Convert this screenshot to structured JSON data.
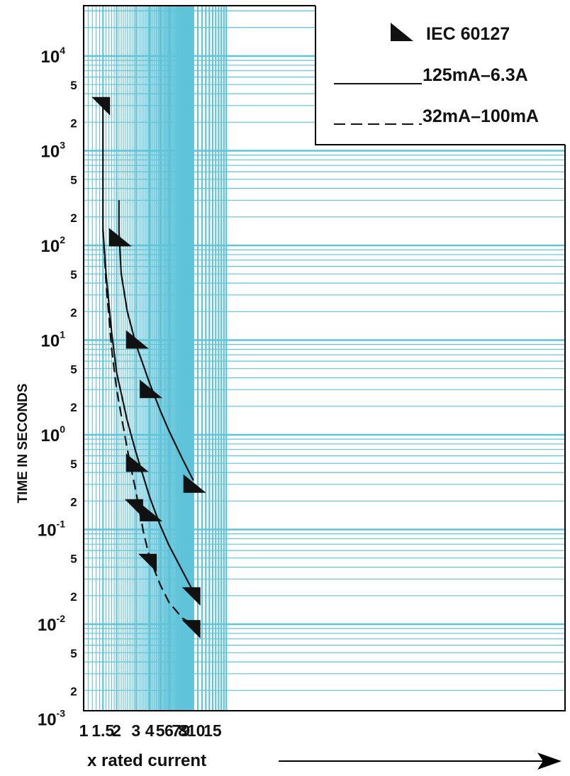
{
  "chart_data": {
    "type": "line",
    "title": "",
    "xlabel": "x rated current",
    "ylabel": "TIME IN SECONDS",
    "xscale": "log",
    "yscale": "log",
    "xlim": [
      1,
      20
    ],
    "ylim": [
      0.001,
      50000
    ],
    "grid": true,
    "x_ticks": [
      {
        "value": 1,
        "label": "1"
      },
      {
        "value": 1.5,
        "label": "1.5"
      },
      {
        "value": 2,
        "label": "2"
      },
      {
        "value": 3,
        "label": "3"
      },
      {
        "value": 4,
        "label": "4"
      },
      {
        "value": 5,
        "label": "5"
      },
      {
        "value": 6,
        "label": "6"
      },
      {
        "value": 7,
        "label": "7"
      },
      {
        "value": 8,
        "label": "8"
      },
      {
        "value": 9,
        "label": "9"
      },
      {
        "value": 10,
        "label": "10"
      },
      {
        "value": 15,
        "label": "15"
      }
    ],
    "y_ticks": [
      {
        "value": 0.001,
        "base": "10",
        "exp": "-3"
      },
      {
        "value": 0.002,
        "label": "2"
      },
      {
        "value": 0.005,
        "label": "5"
      },
      {
        "value": 0.01,
        "base": "10",
        "exp": "-2"
      },
      {
        "value": 0.02,
        "label": "2"
      },
      {
        "value": 0.05,
        "label": "5"
      },
      {
        "value": 0.1,
        "base": "10",
        "exp": "-1"
      },
      {
        "value": 0.2,
        "label": "2"
      },
      {
        "value": 0.5,
        "label": "5"
      },
      {
        "value": 1,
        "base": "10",
        "exp": "0"
      },
      {
        "value": 2,
        "label": "2"
      },
      {
        "value": 5,
        "label": "5"
      },
      {
        "value": 10,
        "base": "10",
        "exp": "1"
      },
      {
        "value": 20,
        "label": "2"
      },
      {
        "value": 50,
        "label": "5"
      },
      {
        "value": 100,
        "base": "10",
        "exp": "2"
      },
      {
        "value": 200,
        "label": "2"
      },
      {
        "value": 500,
        "label": "5"
      },
      {
        "value": 1000,
        "base": "10",
        "exp": "3"
      },
      {
        "value": 2000,
        "label": "2"
      },
      {
        "value": 5000,
        "label": "5"
      },
      {
        "value": 10000,
        "base": "10",
        "exp": "4"
      }
    ],
    "legend": {
      "position": "top-right",
      "entries": [
        {
          "label": "IEC 60127",
          "style": "marker"
        },
        {
          "label": "125mA–6.3A",
          "style": "solid"
        },
        {
          "label": "32mA–100mA",
          "style": "dashed"
        }
      ]
    },
    "series": [
      {
        "style": "solid",
        "points": [
          [
            1.5,
            3000
          ],
          [
            1.5,
            150
          ],
          [
            1.6,
            50
          ],
          [
            1.8,
            12
          ],
          [
            2,
            4.5
          ],
          [
            2.5,
            1.4
          ],
          [
            3,
            0.65
          ],
          [
            4,
            0.22
          ],
          [
            5,
            0.11
          ],
          [
            6,
            0.068
          ],
          [
            8,
            0.036
          ],
          [
            10,
            0.022
          ]
        ]
      },
      {
        "style": "dashed",
        "points": [
          [
            1.5,
            150
          ],
          [
            1.6,
            40
          ],
          [
            1.8,
            8
          ],
          [
            2,
            3
          ],
          [
            2.5,
            0.7
          ],
          [
            3,
            0.25
          ],
          [
            3.5,
            0.095
          ],
          [
            4,
            0.05
          ],
          [
            5,
            0.026
          ],
          [
            6,
            0.017
          ],
          [
            8,
            0.0115
          ],
          [
            10,
            0.01
          ]
        ]
      },
      {
        "style": "solid",
        "points": [
          [
            2.1,
            300
          ],
          [
            2.1,
            140
          ],
          [
            2.2,
            50
          ],
          [
            2.5,
            20
          ],
          [
            3,
            9
          ],
          [
            4,
            3.5
          ],
          [
            5,
            1.8
          ],
          [
            6,
            1.1
          ],
          [
            8,
            0.55
          ],
          [
            10,
            0.33
          ]
        ]
      }
    ],
    "iec_markers": [
      {
        "x": 1.5,
        "y": 3000,
        "orient": "down"
      },
      {
        "x": 2.1,
        "y": 120,
        "orient": "up"
      },
      {
        "x": 3,
        "y": 10,
        "orient": "up"
      },
      {
        "x": 4,
        "y": 3,
        "orient": "up"
      },
      {
        "x": 10,
        "y": 0.3,
        "orient": "up"
      },
      {
        "x": 3,
        "y": 0.5,
        "orient": "up"
      },
      {
        "x": 3,
        "y": 0.17,
        "orient": "down"
      },
      {
        "x": 4,
        "y": 0.15,
        "orient": "up"
      },
      {
        "x": 4,
        "y": 0.045,
        "orient": "down"
      },
      {
        "x": 10,
        "y": 0.02,
        "orient": "down"
      },
      {
        "x": 10,
        "y": 0.009,
        "orient": "down"
      }
    ]
  }
}
